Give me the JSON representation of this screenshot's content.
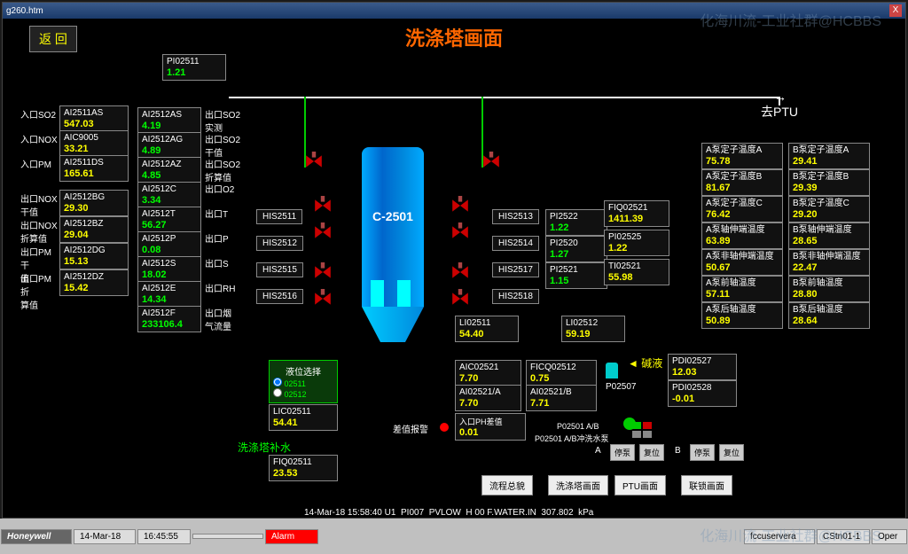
{
  "window": {
    "title": "g260.htm",
    "close": "X"
  },
  "header": {
    "back": "返 回",
    "title": "洗涤塔画面"
  },
  "topTag": {
    "tag": "PI02511",
    "val": "1.21"
  },
  "leftCol1": [
    {
      "lbl": "入口SO2",
      "tag": "AI2511AS",
      "val": "547.03"
    },
    {
      "lbl": "入口NOX",
      "tag": "AIC9005",
      "val": "33.21"
    },
    {
      "lbl": "入口PM",
      "tag": "AI2511DS",
      "val": "165.61"
    },
    {
      "lbl": "出口NOX\n干值",
      "tag": "AI2512BG",
      "val": "29.30"
    },
    {
      "lbl": "出口NOX\n折算值",
      "tag": "AI2512BZ",
      "val": "29.04"
    },
    {
      "lbl": "出口PM 干\n值",
      "tag": "AI2512DG",
      "val": "15.13"
    },
    {
      "lbl": "出口PM 折\n算值",
      "tag": "AI2512DZ",
      "val": "15.42"
    }
  ],
  "leftCol2": [
    {
      "tag": "AI2512AS",
      "val": "4.19",
      "rlbl": "出口SO2\n实测"
    },
    {
      "tag": "AI2512AG",
      "val": "4.89",
      "rlbl": "出口SO2\n干值"
    },
    {
      "tag": "AI2512AZ",
      "val": "4.85",
      "rlbl": "出口SO2\n折算值"
    },
    {
      "tag": "AI2512C",
      "val": "3.34",
      "rlbl": "出口O2"
    },
    {
      "tag": "AI2512T",
      "val": "56.27",
      "rlbl": "出口T"
    },
    {
      "tag": "AI2512P",
      "val": "0.08",
      "rlbl": "出口P"
    },
    {
      "tag": "AI2512S",
      "val": "18.02",
      "rlbl": "出口S"
    },
    {
      "tag": "AI2512E",
      "val": "14.34",
      "rlbl": "出口RH"
    },
    {
      "tag": "AI2512F",
      "val": "233106.4",
      "rlbl": "出口烟\n气流量"
    }
  ],
  "hisLeft": [
    "HIS2511",
    "HIS2512",
    "HIS2515",
    "HIS2516"
  ],
  "hisRight": [
    "HIS2513",
    "HIS2514",
    "HIS2517",
    "HIS2518"
  ],
  "vessel": {
    "label": "C-2501"
  },
  "midTags": [
    {
      "tag": "PI2522",
      "val": "1.22"
    },
    {
      "tag": "PI2520",
      "val": "1.27"
    },
    {
      "tag": "PI2521",
      "val": "1.15"
    }
  ],
  "midTags2": [
    {
      "tag": "FIQ02521",
      "val": "1411.39"
    },
    {
      "tag": "PI02525",
      "val": "1.22"
    },
    {
      "tag": "TI02521",
      "val": "55.98"
    }
  ],
  "li": [
    {
      "tag": "LI02511",
      "val": "54.40"
    },
    {
      "tag": "LI02512",
      "val": "59.19"
    }
  ],
  "aic": [
    {
      "tag": "AIC02521",
      "val": "7.70"
    },
    {
      "tag": "FICQ02512",
      "val": "0.75"
    },
    {
      "tag": "AI02521/A",
      "val": "7.70"
    },
    {
      "tag": "AI02521/B",
      "val": "7.71"
    }
  ],
  "phdiff": {
    "lbl": "入口PH差值",
    "val": "0.01"
  },
  "alarmLbl": "差值报警",
  "levelSel": {
    "title": "液位选择",
    "opt1": "02511",
    "opt2": "02512"
  },
  "lic": {
    "tag": "LIC02511",
    "val": "54.41"
  },
  "fiqBot": {
    "tag": "FIQ02511",
    "val": "23.53"
  },
  "washLbl": "洗涤塔补水",
  "alkalai": "碱液",
  "p02507": "P02507",
  "pdi": [
    {
      "tag": "PDI02527",
      "val": "12.03"
    },
    {
      "tag": "PDI02528",
      "val": "-0.01"
    }
  ],
  "pumpA": [
    {
      "lbl": "A泵定子温度A",
      "val": "75.78"
    },
    {
      "lbl": "A泵定子温度B",
      "val": "81.67"
    },
    {
      "lbl": "A泵定子温度C",
      "val": "76.42"
    },
    {
      "lbl": "A泵轴伸端温度",
      "val": "63.89"
    },
    {
      "lbl": "A泵非轴伸端温度",
      "val": "50.67"
    },
    {
      "lbl": "A泵前轴温度",
      "val": "57.11"
    },
    {
      "lbl": "A泵后轴温度",
      "val": "50.89"
    }
  ],
  "pumpB": [
    {
      "lbl": "B泵定子温度A",
      "val": "29.41"
    },
    {
      "lbl": "B泵定子温度B",
      "val": "29.39"
    },
    {
      "lbl": "B泵定子温度C",
      "val": "29.20"
    },
    {
      "lbl": "B泵轴伸端温度",
      "val": "28.65"
    },
    {
      "lbl": "B泵非轴伸端温度",
      "val": "22.47"
    },
    {
      "lbl": "B泵前轴温度",
      "val": "28.80"
    },
    {
      "lbl": "B泵后轴温度",
      "val": "28.64"
    }
  ],
  "ptu": "去PTU",
  "pumpSection": {
    "lbl1": "P02501 A/B",
    "lbl2": "P02501 A/B冲洗水泵",
    "a": "A",
    "b": "B",
    "stop": "停泵",
    "reset": "复位"
  },
  "nav": [
    "流程总貌",
    "洗涤塔画面",
    "PTU画面",
    "联锁画面"
  ],
  "status": {
    "date": "14-Mar-18",
    "time": "15:58:40",
    "u": "U1",
    "pi": "PI007",
    "pv": "PVLOW",
    "h": "H 00 F.WATER.IN",
    "val": "307.802",
    "unit": "kPa"
  },
  "bottom": {
    "brand": "Honeywell",
    "date2": "14-Mar-18",
    "time2": "16:45:55",
    "alarm": "Alarm",
    "svr": "fccuservera",
    "stn": "CStn01-1",
    "oper": "Oper"
  },
  "watermark": "化海川流-工业社群@HCBBS"
}
